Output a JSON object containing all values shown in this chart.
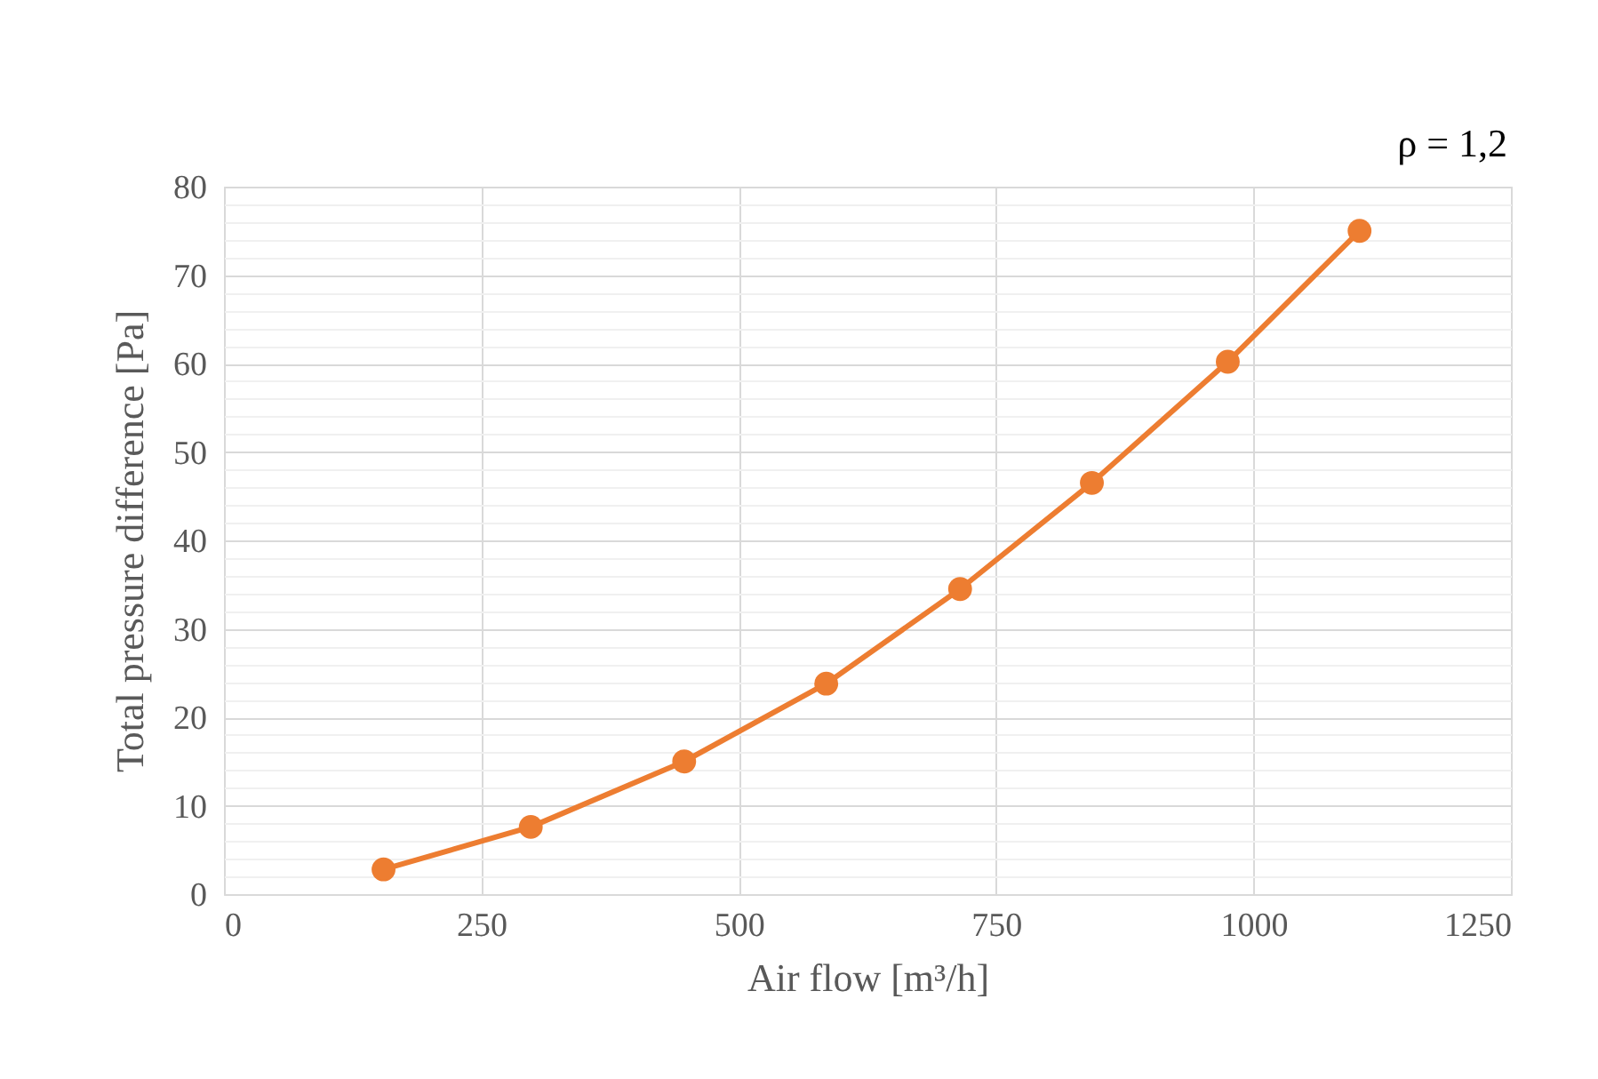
{
  "chart_data": {
    "type": "line",
    "xlabel": "Air flow [m³/h]",
    "ylabel": "Total pressure difference [Pa]",
    "annotations": [
      "ρ = 1,2"
    ],
    "x": [
      155,
      298,
      447,
      585,
      715,
      843,
      975,
      1103
    ],
    "series": [
      {
        "color": "#ed7d31",
        "values": [
          2.8,
          7.6,
          15,
          23.8,
          34.5,
          46.5,
          60.2,
          75
        ]
      }
    ],
    "xlim": [
      0,
      1250
    ],
    "xticks": [
      0,
      250,
      500,
      750,
      1000,
      1250
    ],
    "ylim": [
      0,
      80
    ],
    "yticks": [
      0,
      {
        "value": 2,
        "label": null
      },
      {
        "value": 4,
        "label": null
      },
      {
        "value": 6,
        "label": null
      },
      {
        "value": 8,
        "label": null
      },
      10,
      {
        "value": 12,
        "label": null
      },
      {
        "value": 14,
        "label": null
      },
      {
        "value": 16,
        "label": null
      },
      {
        "value": 18,
        "label": null
      },
      20,
      {
        "value": 22,
        "label": null
      },
      {
        "value": 24,
        "label": null
      },
      {
        "value": 26,
        "label": null
      },
      {
        "value": 28,
        "label": null
      },
      30,
      {
        "value": 32,
        "label": null
      },
      {
        "value": 34,
        "label": null
      },
      {
        "value": 36,
        "label": null
      },
      {
        "value": 38,
        "label": null
      },
      40,
      {
        "value": 42,
        "label": null
      },
      {
        "value": 44,
        "label": null
      },
      {
        "value": 46,
        "label": null
      },
      {
        "value": 48,
        "label": null
      },
      50,
      {
        "value": 52,
        "label": null
      },
      {
        "value": 54,
        "label": null
      },
      {
        "value": 56,
        "label": null
      },
      {
        "value": 58,
        "label": null
      },
      60,
      {
        "value": 62,
        "label": null
      },
      {
        "value": 64,
        "label": null
      },
      {
        "value": 66,
        "label": null
      },
      {
        "value": 68,
        "label": null
      },
      70,
      {
        "value": 72,
        "label": null
      },
      {
        "value": 74,
        "label": null
      },
      {
        "value": 76,
        "label": null
      },
      {
        "value": 78,
        "label": null
      },
      80
    ],
    "grid": true,
    "marker": "circle",
    "line_style": "solid"
  }
}
